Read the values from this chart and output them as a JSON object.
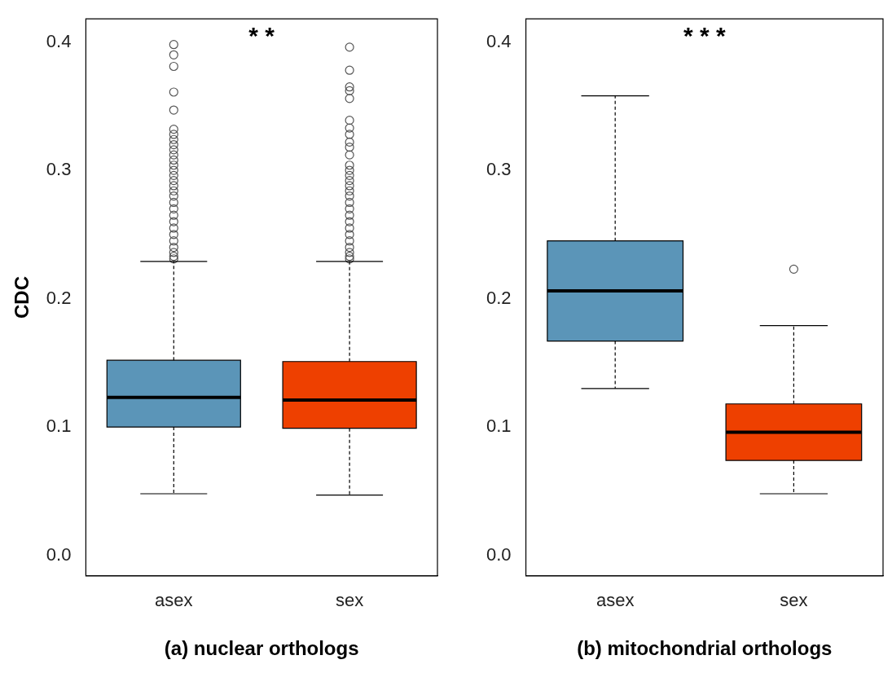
{
  "chart_data": [
    {
      "type": "box",
      "xlabel": "(a) nuclear orthologs",
      "ylabel": "CDC",
      "categories": [
        "asex",
        "sex"
      ],
      "colors": [
        "#5b95b8",
        "#ee4000"
      ],
      "boxes": [
        {
          "low": 0.048,
          "q1": 0.1,
          "median": 0.123,
          "q3": 0.152,
          "high": 0.229,
          "outliers": [
            0.398,
            0.39,
            0.381,
            0.361,
            0.347,
            0.332,
            0.328,
            0.324,
            0.32,
            0.316,
            0.312,
            0.308,
            0.304,
            0.3,
            0.296,
            0.292,
            0.288,
            0.284,
            0.28,
            0.275,
            0.27,
            0.265,
            0.26,
            0.255,
            0.25,
            0.245,
            0.24,
            0.236,
            0.233,
            0.231
          ]
        },
        {
          "low": 0.047,
          "q1": 0.099,
          "median": 0.121,
          "q3": 0.151,
          "high": 0.229,
          "outliers": [
            0.396,
            0.378,
            0.365,
            0.362,
            0.356,
            0.339,
            0.333,
            0.328,
            0.322,
            0.318,
            0.312,
            0.304,
            0.3,
            0.296,
            0.292,
            0.288,
            0.284,
            0.28,
            0.275,
            0.27,
            0.265,
            0.26,
            0.255,
            0.25,
            0.245,
            0.24,
            0.236,
            0.233,
            0.231
          ]
        }
      ],
      "ylim": [
        -0.016,
        0.418
      ],
      "yticks": [
        {
          "value": 0,
          "label": "0.0"
        },
        0.1,
        0.2,
        0.3,
        0.4
      ],
      "grid": false,
      "legend": false,
      "annotations": [
        "* *"
      ]
    },
    {
      "type": "box",
      "xlabel": "(b) mitochondrial orthologs",
      "categories": [
        "asex",
        "sex"
      ],
      "colors": [
        "#5b95b8",
        "#ee4000"
      ],
      "boxes": [
        {
          "low": 0.13,
          "q1": 0.167,
          "median": 0.206,
          "q3": 0.245,
          "high": 0.358
        },
        {
          "low": 0.048,
          "q1": 0.074,
          "median": 0.096,
          "q3": 0.118,
          "high": 0.179,
          "outliers": [
            0.223
          ]
        }
      ],
      "ylim": [
        -0.016,
        0.418
      ],
      "yticks": [
        {
          "value": 0,
          "label": "0.0"
        },
        0.1,
        0.2,
        0.3,
        0.4
      ],
      "grid": false,
      "legend": false,
      "annotations": [
        "* * *"
      ]
    }
  ]
}
